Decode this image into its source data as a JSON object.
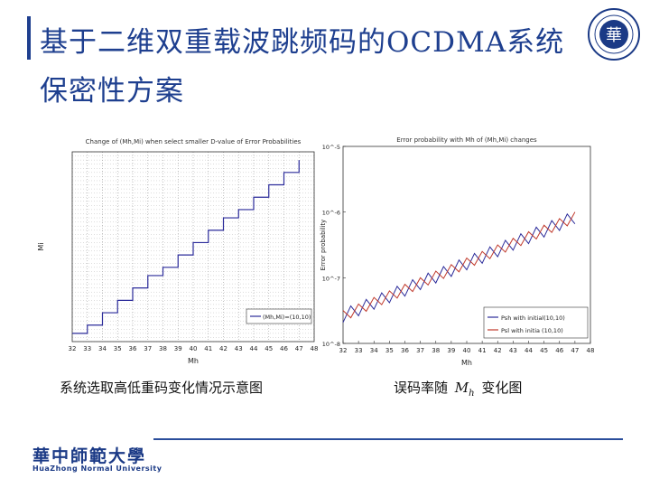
{
  "slide": {
    "title": "基于二维双重载波跳频码的OCDMA系统保密性方案",
    "caption_left": "系统选取高低重码变化情况示意图",
    "caption_right_prefix": "误码率随",
    "caption_right_symbol": "M",
    "caption_right_sub": "h",
    "caption_right_suffix": "变化图",
    "logo_cn": "華中師範大學",
    "logo_en": "HuaZhong Normal University",
    "seal_glyph": "華"
  },
  "colors": {
    "title": "#1e3f8f",
    "footer": "#2a4d9b",
    "blue_series": "#2b2b9a",
    "red_series": "#c0392b"
  },
  "chart_data": [
    {
      "type": "line",
      "title": "Change of (Mh,Mi) when select smaller D-value of Error Probabilities",
      "xlabel": "Mh",
      "ylabel": "Mi",
      "xlim": [
        32,
        48
      ],
      "x_ticks": [
        "32",
        "33",
        "34",
        "35",
        "36",
        "37",
        "38",
        "39",
        "40",
        "41",
        "42",
        "43",
        "44",
        "45",
        "46",
        "47",
        "48"
      ],
      "legend": "(Mh,Mi)=(10,10)",
      "legend_position": "bottom-right",
      "grid": true,
      "series": [
        {
          "x": [
            32,
            33,
            33,
            34,
            34,
            35,
            35,
            36,
            36,
            37,
            37,
            38,
            38,
            39,
            39,
            40,
            40,
            41,
            41,
            42,
            42,
            43,
            43,
            44,
            44,
            45,
            45,
            46,
            46,
            47,
            47
          ],
          "y": [
            10,
            10,
            12,
            12,
            15,
            15,
            18,
            18,
            21,
            21,
            24,
            24,
            26,
            26,
            29,
            29,
            32,
            32,
            35,
            35,
            38,
            38,
            40,
            40,
            43,
            43,
            46,
            46,
            49,
            49,
            52
          ]
        }
      ]
    },
    {
      "type": "line",
      "title": "Error probability with Mh of (Mh,Mi) changes",
      "xlabel": "Mh",
      "ylabel": "Error probability",
      "xlim": [
        32,
        48
      ],
      "y_scale": "log",
      "x_ticks": [
        "32",
        "33",
        "34",
        "35",
        "36",
        "37",
        "38",
        "39",
        "40",
        "41",
        "42",
        "43",
        "44",
        "45",
        "46",
        "47",
        "48"
      ],
      "y_ticks": [
        "10^-5",
        "10^-6",
        "10^-7",
        "10^-8"
      ],
      "legend_position": "bottom-right",
      "series": [
        {
          "name": "Psh with initial(10,10)",
          "color": "#2b2b9a"
        },
        {
          "name": "Psl with initia (10,10)",
          "color": "#c0392b"
        }
      ]
    }
  ]
}
